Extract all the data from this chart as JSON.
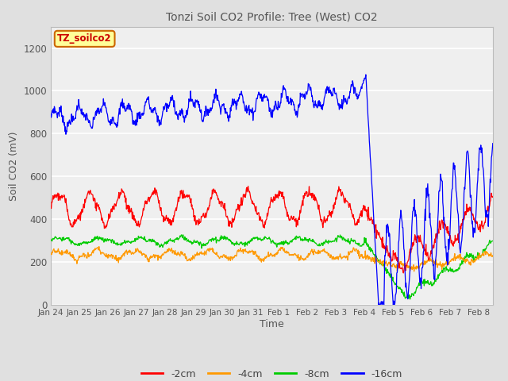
{
  "title": "Tonzi Soil CO2 Profile: Tree (West) CO2",
  "ylabel": "Soil CO2 (mV)",
  "xlabel": "Time",
  "annotation_label": "TZ_soilco2",
  "legend_labels": [
    "-2cm",
    "-4cm",
    "-8cm",
    "-16cm"
  ],
  "legend_colors": [
    "#ff0000",
    "#ff9900",
    "#00cc00",
    "#0000ff"
  ],
  "ylim": [
    0,
    1300
  ],
  "yticks": [
    0,
    200,
    400,
    600,
    800,
    1000,
    1200
  ],
  "background_color": "#e0e0e0",
  "plot_bg_color": "#efefef",
  "grid_color": "#ffffff",
  "n_points": 1000,
  "end_day": 15.5
}
